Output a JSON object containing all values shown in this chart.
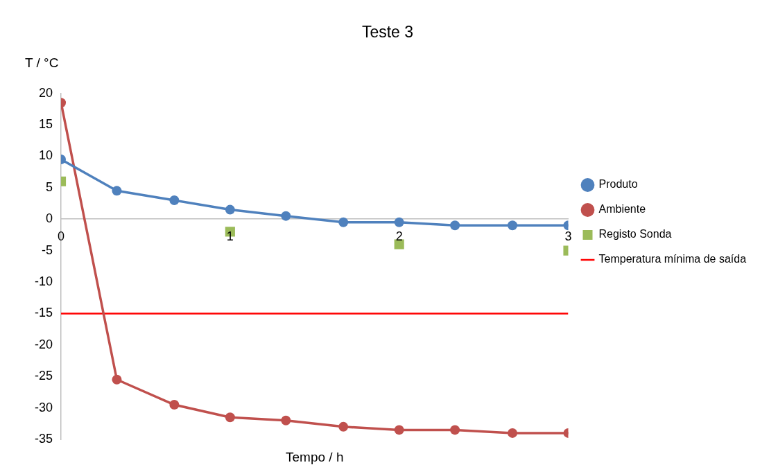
{
  "chart_data": {
    "type": "line",
    "title": "Teste 3",
    "xlabel": "Tempo / h",
    "ylabel": "T / °C",
    "x": [
      0,
      0.33,
      0.67,
      1,
      1.33,
      1.67,
      2,
      2.33,
      2.67,
      3
    ],
    "series": [
      {
        "name": "Produto",
        "color": "#4f81bd",
        "values": [
          9.5,
          4.5,
          3,
          1.5,
          0.5,
          -0.5,
          -0.5,
          -1,
          -1,
          -1
        ]
      },
      {
        "name": "Ambiente",
        "color": "#c0504d",
        "values": [
          18.5,
          -25.5,
          -29.5,
          -31.5,
          -32,
          -33,
          -33.5,
          -33.5,
          -34,
          -34
        ]
      },
      {
        "name": "Registo Sonda",
        "type": "scatter",
        "marker": "square",
        "color": "#9bbb59",
        "x": [
          0,
          1,
          2,
          3
        ],
        "values": [
          6,
          -2,
          -4,
          -5
        ]
      }
    ],
    "ref_lines": [
      {
        "axis": "y",
        "value": -15,
        "label": "Temperatura mínima de saída",
        "color": "#ff0000"
      }
    ],
    "marker": "circle",
    "xlim": [
      0,
      3
    ],
    "xticks": [
      0,
      1,
      2,
      3
    ],
    "ylim": [
      -35,
      20
    ],
    "yticks": [
      -35,
      -30,
      -25,
      -20,
      -15,
      -10,
      -5,
      0,
      5,
      10,
      15,
      20
    ],
    "grid": false,
    "legend": "right"
  }
}
